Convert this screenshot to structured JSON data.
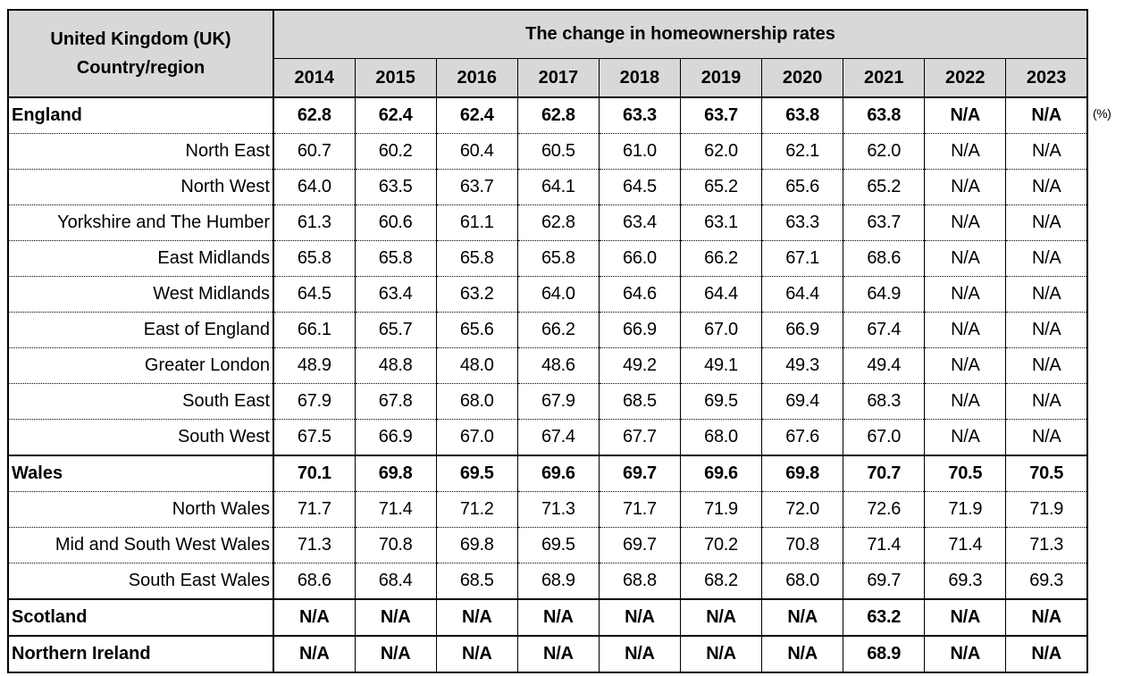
{
  "chart_data": {
    "type": "table",
    "title": "The change in homeownership rates",
    "unit_label": "(%)",
    "row_header": [
      "United Kingdom (UK)",
      "Country/region"
    ],
    "columns": [
      "2014",
      "2015",
      "2016",
      "2017",
      "2018",
      "2019",
      "2020",
      "2021",
      "2022",
      "2023"
    ],
    "rows": [
      {
        "label": "England",
        "level": "country",
        "values": [
          "62.8",
          "62.4",
          "62.4",
          "62.8",
          "63.3",
          "63.7",
          "63.8",
          "63.8",
          "N/A",
          "N/A"
        ]
      },
      {
        "label": "North East",
        "level": "region",
        "values": [
          "60.7",
          "60.2",
          "60.4",
          "60.5",
          "61.0",
          "62.0",
          "62.1",
          "62.0",
          "N/A",
          "N/A"
        ]
      },
      {
        "label": "North West",
        "level": "region",
        "values": [
          "64.0",
          "63.5",
          "63.7",
          "64.1",
          "64.5",
          "65.2",
          "65.6",
          "65.2",
          "N/A",
          "N/A"
        ]
      },
      {
        "label": "Yorkshire and The Humber",
        "level": "region",
        "values": [
          "61.3",
          "60.6",
          "61.1",
          "62.8",
          "63.4",
          "63.1",
          "63.3",
          "63.7",
          "N/A",
          "N/A"
        ]
      },
      {
        "label": "East Midlands",
        "level": "region",
        "values": [
          "65.8",
          "65.8",
          "65.8",
          "65.8",
          "66.0",
          "66.2",
          "67.1",
          "68.6",
          "N/A",
          "N/A"
        ]
      },
      {
        "label": "West Midlands",
        "level": "region",
        "values": [
          "64.5",
          "63.4",
          "63.2",
          "64.0",
          "64.6",
          "64.4",
          "64.4",
          "64.9",
          "N/A",
          "N/A"
        ]
      },
      {
        "label": "East of England",
        "level": "region",
        "values": [
          "66.1",
          "65.7",
          "65.6",
          "66.2",
          "66.9",
          "67.0",
          "66.9",
          "67.4",
          "N/A",
          "N/A"
        ]
      },
      {
        "label": "Greater London",
        "level": "region",
        "values": [
          "48.9",
          "48.8",
          "48.0",
          "48.6",
          "49.2",
          "49.1",
          "49.3",
          "49.4",
          "N/A",
          "N/A"
        ]
      },
      {
        "label": "South East",
        "level": "region",
        "values": [
          "67.9",
          "67.8",
          "68.0",
          "67.9",
          "68.5",
          "69.5",
          "69.4",
          "68.3",
          "N/A",
          "N/A"
        ]
      },
      {
        "label": "South West",
        "level": "region",
        "values": [
          "67.5",
          "66.9",
          "67.0",
          "67.4",
          "67.7",
          "68.0",
          "67.6",
          "67.0",
          "N/A",
          "N/A"
        ]
      },
      {
        "label": "Wales",
        "level": "country",
        "values": [
          "70.1",
          "69.8",
          "69.5",
          "69.6",
          "69.7",
          "69.6",
          "69.8",
          "70.7",
          "70.5",
          "70.5"
        ]
      },
      {
        "label": "North Wales",
        "level": "region",
        "values": [
          "71.7",
          "71.4",
          "71.2",
          "71.3",
          "71.7",
          "71.9",
          "72.0",
          "72.6",
          "71.9",
          "71.9"
        ]
      },
      {
        "label": "Mid and South West Wales",
        "level": "region",
        "values": [
          "71.3",
          "70.8",
          "69.8",
          "69.5",
          "69.7",
          "70.2",
          "70.8",
          "71.4",
          "71.4",
          "71.3"
        ]
      },
      {
        "label": "South East Wales",
        "level": "region",
        "values": [
          "68.6",
          "68.4",
          "68.5",
          "68.9",
          "68.8",
          "68.2",
          "68.0",
          "69.7",
          "69.3",
          "69.3"
        ]
      },
      {
        "label": "Scotland",
        "level": "country",
        "values": [
          "N/A",
          "N/A",
          "N/A",
          "N/A",
          "N/A",
          "N/A",
          "N/A",
          "63.2",
          "N/A",
          "N/A"
        ]
      },
      {
        "label": "Northern Ireland",
        "level": "country",
        "values": [
          "N/A",
          "N/A",
          "N/A",
          "N/A",
          "N/A",
          "N/A",
          "N/A",
          "68.9",
          "N/A",
          "N/A"
        ]
      }
    ],
    "colors": {
      "header_background": "#d8d8d8",
      "border": "#000000",
      "text": "#000000"
    }
  }
}
